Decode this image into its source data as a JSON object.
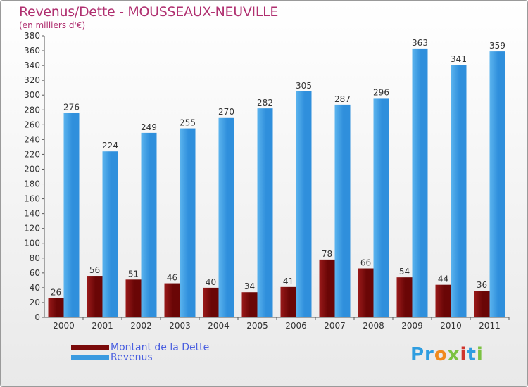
{
  "title": "Revenus/Dette - MOUSSEAUX-NEUVILLE",
  "subtitle": "(en milliers d'€)",
  "legend": {
    "debt_label": "Montant de la Dette",
    "revenue_label": "Revenus"
  },
  "logo": {
    "text": "Proxiti"
  },
  "colors": {
    "debt": "#7a0a0a",
    "revenue": "#3a9ae0",
    "label": "#333333",
    "axis": "#555555",
    "title": "#b03070",
    "legend_text": "#4a5fe0"
  },
  "chart_data": {
    "type": "bar",
    "title": "Revenus/Dette - MOUSSEAUX-NEUVILLE",
    "subtitle": "(en milliers d'€)",
    "categories": [
      "2000",
      "2001",
      "2002",
      "2003",
      "2004",
      "2005",
      "2006",
      "2007",
      "2008",
      "2009",
      "2010",
      "2011"
    ],
    "series": [
      {
        "name": "Montant de la Dette",
        "values": [
          26,
          56,
          51,
          46,
          40,
          34,
          41,
          78,
          66,
          54,
          44,
          36
        ]
      },
      {
        "name": "Revenus",
        "values": [
          276,
          224,
          249,
          255,
          270,
          282,
          305,
          287,
          296,
          363,
          341,
          359
        ]
      }
    ],
    "ylim": [
      0,
      380
    ],
    "yticks": [
      0,
      20,
      40,
      60,
      80,
      100,
      120,
      140,
      160,
      180,
      200,
      220,
      240,
      260,
      280,
      300,
      320,
      340,
      360,
      380
    ],
    "grid": false,
    "legend_position": "bottom-left"
  }
}
